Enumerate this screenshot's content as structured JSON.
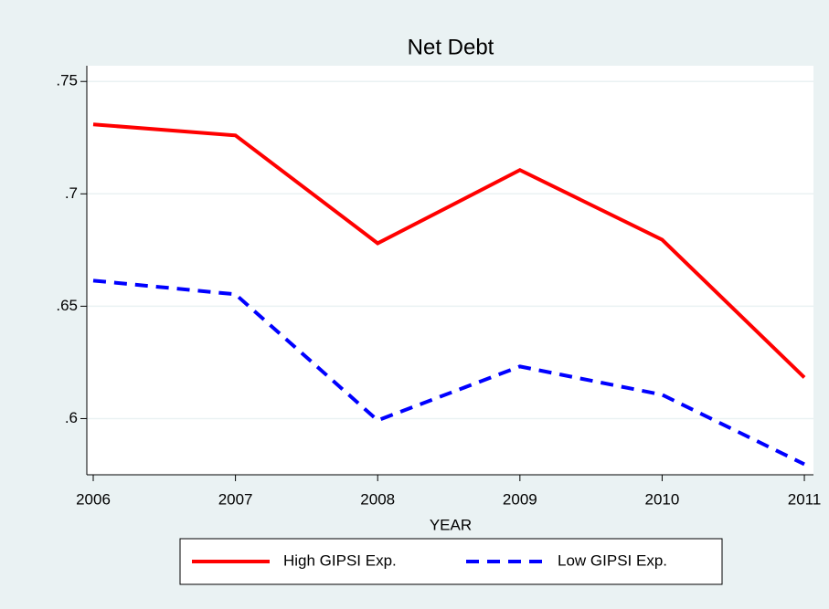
{
  "chart_data": {
    "type": "line",
    "title": "Net Debt",
    "x_label": "YEAR",
    "x": [
      2006,
      2007,
      2008,
      2009,
      2010,
      2011
    ],
    "series": [
      {
        "name": "High GIPSI Exp.",
        "color": "#ff0000",
        "dash": "solid",
        "values": [
          0.7309,
          0.726,
          0.678,
          0.7106,
          0.6796,
          0.6183
        ]
      },
      {
        "name": "Low GIPSI Exp.",
        "color": "#0000ff",
        "dash": "dash",
        "values": [
          0.6614,
          0.6553,
          0.5992,
          0.6232,
          0.6106,
          0.5797
        ]
      }
    ],
    "xlim": [
      2005.955,
      2011.064
    ],
    "xticks": [
      2006,
      2007,
      2008,
      2009,
      2010,
      2011
    ],
    "ylim": [
      0.575,
      0.757
    ],
    "yticks": [
      {
        "value": 0.6,
        "label": ".6"
      },
      {
        "value": 0.65,
        "label": ".65"
      },
      {
        "value": 0.7,
        "label": ".7"
      },
      {
        "value": 0.75,
        "label": ".75"
      }
    ],
    "grid": true,
    "legend": "bottom"
  }
}
